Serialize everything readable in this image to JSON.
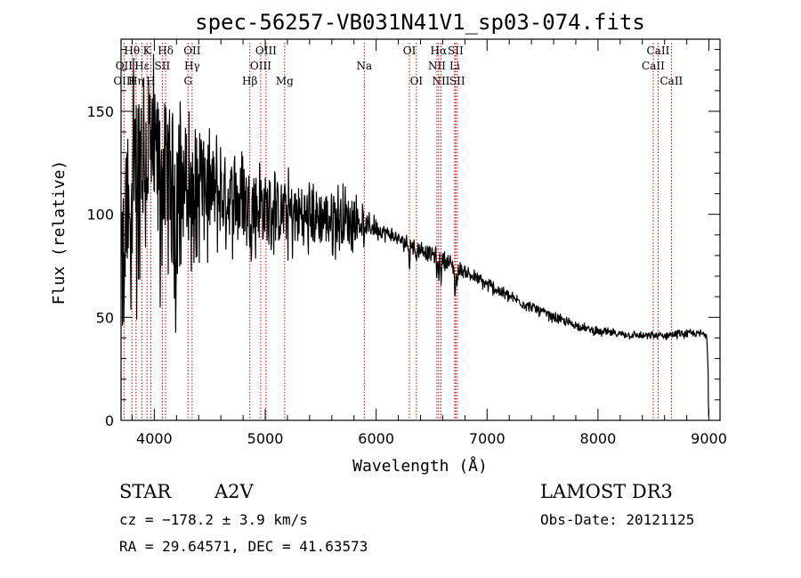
{
  "chart_data": {
    "type": "line",
    "title": "spec-56257-VB031N41V1_sp03-074.fits",
    "xlabel": "Wavelength (Å)",
    "ylabel": "Flux (relative)",
    "xlim": [
      3700,
      9100
    ],
    "ylim": [
      0,
      185
    ],
    "xticks": [
      4000,
      5000,
      6000,
      7000,
      8000,
      9000
    ],
    "xtick_labels": [
      "4000",
      "5000",
      "6000",
      "7000",
      "8000",
      "9000"
    ],
    "yticks": [
      0,
      50,
      100,
      150
    ],
    "ytick_labels": [
      "0",
      "50",
      "100",
      "150"
    ],
    "x_minor_step": 200,
    "y_minor_step": 10,
    "spectrum_envelope": {
      "x": [
        3700,
        3750,
        3800,
        3850,
        3900,
        3950,
        4000,
        4100,
        4200,
        4300,
        4400,
        4600,
        4800,
        5000,
        5200,
        5400,
        5600,
        5800,
        5900,
        6000,
        6100,
        6200,
        6300,
        6400,
        6500,
        6600,
        6700,
        6800,
        6900,
        7000,
        7100,
        7200,
        7400,
        7600,
        7800,
        8000,
        8200,
        8400,
        8500,
        8600,
        8700,
        8800,
        8900,
        8980,
        9000
      ],
      "y": [
        60,
        95,
        118,
        128,
        130,
        128,
        125,
        122,
        118,
        115,
        113,
        110,
        106,
        103,
        100,
        99,
        98,
        97,
        95,
        93,
        91,
        88,
        85,
        83,
        81,
        78,
        75,
        72,
        69,
        66,
        63,
        60,
        55,
        50,
        46,
        43,
        42,
        41,
        41,
        41,
        42,
        42,
        42,
        42,
        15
      ],
      "noise": [
        35,
        35,
        38,
        38,
        38,
        36,
        34,
        32,
        30,
        28,
        24,
        20,
        18,
        16,
        15,
        14,
        13,
        10,
        5,
        4,
        3,
        3,
        3,
        3,
        3,
        3,
        3,
        2.5,
        2.5,
        2.5,
        2.5,
        2,
        2,
        1.8,
        1.6,
        1.5,
        1.5,
        1.5,
        1.5,
        1.5,
        1.5,
        1.5,
        1.5,
        1.5,
        1.5
      ]
    },
    "spectral_lines": [
      {
        "label": "Hθ",
        "wavelength": 3798,
        "row": 0
      },
      {
        "label": "K",
        "wavelength": 3934,
        "row": 0
      },
      {
        "label": "Hδ",
        "wavelength": 4102,
        "row": 0
      },
      {
        "label": "OII",
        "wavelength": 4341,
        "row": 0
      },
      {
        "label": "OIII",
        "wavelength": 5007,
        "row": 0
      },
      {
        "label": "OI",
        "wavelength": 6300,
        "row": 0
      },
      {
        "label": "Hα",
        "wavelength": 6563,
        "row": 0
      },
      {
        "label": "SII",
        "wavelength": 6716,
        "row": 0
      },
      {
        "label": "CaII",
        "wavelength": 8542,
        "row": 0
      },
      {
        "label": "OII",
        "wavelength": 3727,
        "row": 1
      },
      {
        "label": "Hε",
        "wavelength": 3889,
        "row": 1
      },
      {
        "label": "SII",
        "wavelength": 4072,
        "row": 1
      },
      {
        "label": "Hγ",
        "wavelength": 4340,
        "row": 1
      },
      {
        "label": "OIII",
        "wavelength": 4959,
        "row": 1
      },
      {
        "label": "Na",
        "wavelength": 5893,
        "row": 1
      },
      {
        "label": "NII",
        "wavelength": 6548,
        "row": 1
      },
      {
        "label": "Li",
        "wavelength": 6708,
        "row": 1
      },
      {
        "label": "CaII",
        "wavelength": 8498,
        "row": 1
      },
      {
        "label": "OIII",
        "wavelength": 3727,
        "row": 2
      },
      {
        "label": "Hη",
        "wavelength": 3835,
        "row": 2
      },
      {
        "label": "H",
        "wavelength": 3968,
        "row": 2
      },
      {
        "label": "G",
        "wavelength": 4304,
        "row": 2
      },
      {
        "label": "Hβ",
        "wavelength": 4861,
        "row": 2
      },
      {
        "label": "Mg",
        "wavelength": 5175,
        "row": 2
      },
      {
        "label": "OI",
        "wavelength": 6363,
        "row": 2
      },
      {
        "label": "NII",
        "wavelength": 6584,
        "row": 2
      },
      {
        "label": "SII",
        "wavelength": 6731,
        "row": 2
      },
      {
        "label": "CaII",
        "wavelength": 8662,
        "row": 2
      }
    ]
  },
  "footer": {
    "object_class": "STAR",
    "subclass": "A2V",
    "velocity": "cz = −178.2 ± 3.9 km/s",
    "coords": "RA =  29.64571, DEC =  41.63573",
    "survey": "LAMOST DR3",
    "obs_date": "Obs-Date: 20121125"
  },
  "colors": {
    "line_marker": "#cc0000",
    "spectrum": "#000000",
    "axes": "#000000"
  }
}
